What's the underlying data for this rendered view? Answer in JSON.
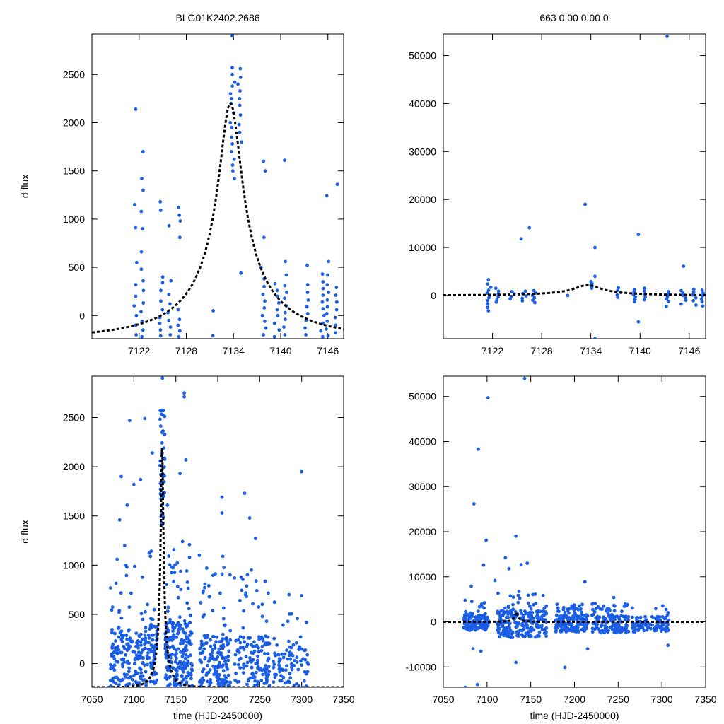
{
  "figure": {
    "title_left": "BLG01K2402.2686",
    "title_right": "663  0.00  0.00  0",
    "ylabel": "d flux",
    "xlabel": "time (HJD-2450000)"
  },
  "chart_data": [
    {
      "name": "top-left",
      "type": "scatter",
      "xlim": [
        7116,
        7148
      ],
      "ylim": [
        -240,
        2920
      ],
      "xticks": [
        7122,
        7128,
        7134,
        7140,
        7146
      ],
      "yticks": [
        0,
        500,
        1000,
        1500,
        2000,
        2500
      ],
      "ylabel": "d flux",
      "xlabel": "",
      "model": {
        "t0": 7133.6,
        "peak": 2200,
        "base": -240,
        "u0": 0.1,
        "tE": 15
      },
      "groups": [
        {
          "x": 7121.5,
          "spread": 0.4,
          "ys": [
            2140,
            1150,
            910,
            550,
            320,
            200,
            100,
            0,
            -100,
            -200
          ]
        },
        {
          "x": 7122.4,
          "spread": 0.4,
          "ys": [
            1700,
            1420,
            1300,
            1080,
            900,
            660,
            480,
            360,
            260,
            130,
            40,
            -60,
            -150,
            -220
          ]
        },
        {
          "x": 7124.8,
          "spread": 0.5,
          "ys": [
            1180,
            1090,
            400,
            340,
            260,
            150,
            60,
            -20,
            -80,
            -150,
            -210
          ]
        },
        {
          "x": 7125.8,
          "spread": 0.5,
          "ys": [
            930,
            360,
            220,
            120,
            30,
            -50,
            -120,
            -200
          ]
        },
        {
          "x": 7127.1,
          "spread": 0.4,
          "ys": [
            1120,
            1040,
            980,
            810,
            60,
            -40,
            -100,
            -160,
            -220
          ]
        },
        {
          "x": 7131.4,
          "spread": 0.1,
          "ys": [
            50,
            -210
          ]
        },
        {
          "x": 7133.9,
          "spread": 0.6,
          "ys": [
            2900,
            2570,
            2500,
            2420,
            2380,
            2300,
            2250,
            2200,
            2100,
            2000,
            1950,
            1850,
            1780,
            1700,
            1620,
            1560,
            1500,
            1420
          ]
        },
        {
          "x": 7134.8,
          "spread": 0.5,
          "ys": [
            2560,
            2470,
            2400,
            2330,
            2250,
            2180,
            2080,
            1980,
            1900,
            1800
          ]
        },
        {
          "x": 7135.0,
          "spread": 0.2,
          "ys": [
            440
          ]
        },
        {
          "x": 7137.8,
          "spread": 0.6,
          "ys": [
            1600,
            1500,
            810,
            500,
            380,
            300,
            220,
            150,
            80,
            0,
            -60,
            -130,
            -200
          ]
        },
        {
          "x": 7139.5,
          "spread": 0.7,
          "ys": [
            330,
            260,
            200,
            130,
            60,
            0,
            -80,
            -150,
            -220
          ]
        },
        {
          "x": 7140.6,
          "spread": 0.4,
          "ys": [
            1610,
            560,
            420,
            310,
            240,
            180,
            100,
            30,
            -40,
            -120,
            -200
          ]
        },
        {
          "x": 7143.3,
          "spread": 0.4,
          "ys": [
            520,
            320,
            240,
            160,
            90,
            20,
            -50,
            -130,
            -200
          ]
        },
        {
          "x": 7145.3,
          "spread": 0.5,
          "ys": [
            430,
            350,
            280,
            210,
            140,
            70,
            0,
            -80,
            -160,
            -220
          ]
        },
        {
          "x": 7146.0,
          "spread": 0.5,
          "ys": [
            1240,
            560,
            420,
            320,
            240,
            160,
            90,
            20,
            -60,
            -140,
            -210
          ]
        },
        {
          "x": 7147.0,
          "spread": 0.4,
          "ys": [
            1360,
            290,
            210,
            140,
            60,
            -20,
            -100,
            -180
          ]
        }
      ]
    },
    {
      "name": "top-right",
      "type": "scatter",
      "xlim": [
        7116,
        7148
      ],
      "ylim": [
        -9000,
        54500
      ],
      "xticks": [
        7122,
        7128,
        7134,
        7140,
        7146
      ],
      "yticks": [
        0,
        10000,
        20000,
        30000,
        40000,
        50000
      ],
      "ylabel": "",
      "xlabel": "",
      "model": {
        "t0": 7133.6,
        "peak": 2200,
        "base": 0,
        "u0": 0.1,
        "tE": 15
      },
      "outliers": [
        {
          "x": 7125.5,
          "y": 11800
        },
        {
          "x": 7126.5,
          "y": 14100
        },
        {
          "x": 7133.3,
          "y": 19000
        },
        {
          "x": 7134.5,
          "y": 10000
        },
        {
          "x": 7134.5,
          "y": -9000
        },
        {
          "x": 7139.8,
          "y": 12700
        },
        {
          "x": 7139.8,
          "y": -5500
        },
        {
          "x": 7145.3,
          "y": 6100
        },
        {
          "x": 7143.3,
          "y": 54000
        },
        {
          "x": 7121.5,
          "y": 3300
        },
        {
          "x": 7121.5,
          "y": -3200
        },
        {
          "x": 7134.5,
          "y": 4000
        }
      ],
      "groups": [
        {
          "x": 7121.6,
          "spread": 0.5,
          "ys": [
            2400,
            1700,
            1100,
            500,
            0,
            -500,
            -1100,
            -1800,
            -2500
          ]
        },
        {
          "x": 7122.6,
          "spread": 0.5,
          "ys": [
            1500,
            900,
            300,
            -300,
            -900,
            -1400
          ]
        },
        {
          "x": 7124.4,
          "spread": 0.6,
          "ys": [
            800,
            300,
            -200,
            -700
          ]
        },
        {
          "x": 7125.8,
          "spread": 0.6,
          "ys": [
            900,
            400,
            -100,
            -600,
            -1100
          ]
        },
        {
          "x": 7127.0,
          "spread": 0.5,
          "ys": [
            1000,
            500,
            0,
            -500,
            -1000,
            -1500
          ]
        },
        {
          "x": 7131.2,
          "spread": 0.1,
          "ys": [
            0
          ]
        },
        {
          "x": 7134.0,
          "spread": 0.6,
          "ys": [
            2900,
            2500,
            2100,
            1800,
            1500
          ]
        },
        {
          "x": 7137.5,
          "spread": 0.6,
          "ys": [
            1600,
            1100,
            600,
            100,
            -400
          ]
        },
        {
          "x": 7139.3,
          "spread": 0.7,
          "ys": [
            1200,
            700,
            200,
            -300,
            -800,
            -1300
          ]
        },
        {
          "x": 7140.6,
          "spread": 0.4,
          "ys": [
            1500,
            900,
            300,
            -300,
            -900
          ]
        },
        {
          "x": 7143.3,
          "spread": 0.4,
          "ys": [
            800,
            300,
            -200,
            -700,
            -1300,
            -2300
          ]
        },
        {
          "x": 7145.3,
          "spread": 0.6,
          "ys": [
            1000,
            500,
            0,
            -500,
            -1000,
            -1800
          ]
        },
        {
          "x": 7146.6,
          "spread": 0.5,
          "ys": [
            1300,
            700,
            100,
            -500,
            -1100,
            -2000
          ]
        },
        {
          "x": 7147.5,
          "spread": 0.4,
          "ys": [
            1100,
            500,
            -100,
            -700,
            -1300,
            -2200
          ]
        }
      ]
    },
    {
      "name": "bottom-left",
      "type": "scatter",
      "xlim": [
        7050,
        7350
      ],
      "ylim": [
        -240,
        2920
      ],
      "xticks": [
        7050,
        7100,
        7150,
        7200,
        7250,
        7300,
        7350
      ],
      "yticks": [
        0,
        500,
        1000,
        1500,
        2000,
        2500
      ],
      "ylabel": "d flux",
      "xlabel": "time (HJD-2450000)",
      "model": {
        "t0": 7133.6,
        "peak": 2200,
        "base": -240,
        "u0": 0.1,
        "tE": 15
      },
      "outliers": [
        {
          "x": 7134,
          "y": 2900
        },
        {
          "x": 7160,
          "y": 2750
        },
        {
          "x": 7160,
          "y": 2710
        },
        {
          "x": 7095,
          "y": 2470
        },
        {
          "x": 7113,
          "y": 2490
        },
        {
          "x": 7122,
          "y": 2140
        },
        {
          "x": 7155,
          "y": 1930
        },
        {
          "x": 7162,
          "y": 2070
        },
        {
          "x": 7085,
          "y": 1900
        },
        {
          "x": 7100,
          "y": 1820
        },
        {
          "x": 7108,
          "y": 1870
        },
        {
          "x": 7092,
          "y": 1610
        },
        {
          "x": 7205,
          "y": 1690
        },
        {
          "x": 7205,
          "y": 1530
        },
        {
          "x": 7232,
          "y": 1730
        },
        {
          "x": 7300,
          "y": 1950
        },
        {
          "x": 7238,
          "y": 1480
        },
        {
          "x": 7245,
          "y": 1270
        },
        {
          "x": 7178,
          "y": 1100
        },
        {
          "x": 7206,
          "y": 1090
        },
        {
          "x": 7240,
          "y": 950
        },
        {
          "x": 7220,
          "y": 870
        },
        {
          "x": 7285,
          "y": 700
        },
        {
          "x": 7300,
          "y": 690
        },
        {
          "x": 7080,
          "y": 1060
        },
        {
          "x": 7083,
          "y": 1460
        },
        {
          "x": 7089,
          "y": 1200
        },
        {
          "x": 7140,
          "y": 1610
        },
        {
          "x": 7158,
          "y": 1240
        }
      ],
      "bands": [
        {
          "x0": 7072,
          "x1": 7118,
          "n": 190,
          "ymin": -230,
          "ymax": 350,
          "tail": 700
        },
        {
          "x0": 7118,
          "x1": 7128,
          "n": 60,
          "ymin": -230,
          "ymax": 400,
          "tail": 1300
        },
        {
          "x0": 7131,
          "x1": 7137,
          "n": 45,
          "ymin": 1400,
          "ymax": 2570,
          "tail": 0
        },
        {
          "x0": 7137,
          "x1": 7170,
          "n": 210,
          "ymin": -230,
          "ymax": 420,
          "tail": 800
        },
        {
          "x0": 7178,
          "x1": 7215,
          "n": 170,
          "ymin": -230,
          "ymax": 300,
          "tail": 700
        },
        {
          "x0": 7220,
          "x1": 7262,
          "n": 140,
          "ymin": -230,
          "ymax": 280,
          "tail": 650
        },
        {
          "x0": 7266,
          "x1": 7308,
          "n": 90,
          "ymin": -230,
          "ymax": 200,
          "tail": 450
        }
      ]
    },
    {
      "name": "bottom-right",
      "type": "scatter",
      "xlim": [
        7050,
        7350
      ],
      "ylim": [
        -14500,
        54500
      ],
      "xticks": [
        7050,
        7100,
        7150,
        7200,
        7250,
        7300,
        7350
      ],
      "yticks": [
        -10000,
        0,
        10000,
        20000,
        30000,
        40000,
        50000
      ],
      "ylabel": "",
      "xlabel": "time (HJD-2450000)",
      "model": {
        "t0": 7133.6,
        "peak": 2200,
        "base": 0,
        "u0": 0.1,
        "tE": 15
      },
      "outliers": [
        {
          "x": 7143,
          "y": 54000
        },
        {
          "x": 7101,
          "y": 49700
        },
        {
          "x": 7090,
          "y": 38300
        },
        {
          "x": 7085,
          "y": 26200
        },
        {
          "x": 7099,
          "y": 18100
        },
        {
          "x": 7133,
          "y": 19000
        },
        {
          "x": 7096,
          "y": 12600
        },
        {
          "x": 7121,
          "y": 14200
        },
        {
          "x": 7125,
          "y": 11800
        },
        {
          "x": 7139,
          "y": 12700
        },
        {
          "x": 7146,
          "y": 13000
        },
        {
          "x": 7109,
          "y": 9200
        },
        {
          "x": 7082,
          "y": 7900
        },
        {
          "x": 7212,
          "y": 8900
        },
        {
          "x": 7245,
          "y": 5400
        },
        {
          "x": 7189,
          "y": -10100
        },
        {
          "x": 7133,
          "y": -9000
        },
        {
          "x": 7075,
          "y": -14500
        },
        {
          "x": 7089,
          "y": -13900
        },
        {
          "x": 7084,
          "y": -6000
        },
        {
          "x": 7093,
          "y": -6500
        },
        {
          "x": 7215,
          "y": -6000
        },
        {
          "x": 7307,
          "y": -5200
        }
      ],
      "bands": [
        {
          "x0": 7073,
          "x1": 7102,
          "n": 120,
          "ymin": -2000,
          "ymax": 1800,
          "tail": 3500
        },
        {
          "x0": 7112,
          "x1": 7168,
          "n": 230,
          "ymin": -3500,
          "ymax": 2600,
          "tail": 5000
        },
        {
          "x0": 7178,
          "x1": 7215,
          "n": 170,
          "ymin": -2200,
          "ymax": 1600,
          "tail": 2500
        },
        {
          "x0": 7220,
          "x1": 7262,
          "n": 150,
          "ymin": -2400,
          "ymax": 1600,
          "tail": 2500
        },
        {
          "x0": 7266,
          "x1": 7308,
          "n": 100,
          "ymin": -2200,
          "ymax": 1200,
          "tail": 2600
        }
      ]
    }
  ]
}
